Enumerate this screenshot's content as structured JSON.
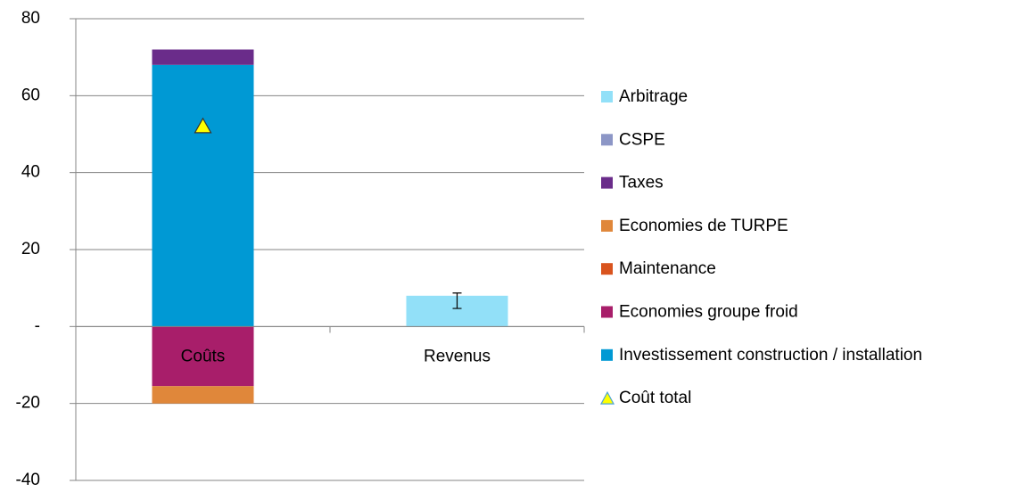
{
  "chart_data": {
    "type": "bar",
    "stacked": true,
    "categories": [
      "Coûts",
      "Revenus"
    ],
    "series": [
      {
        "name": "Arbitrage",
        "color": "#92e0f8",
        "values": [
          0,
          8
        ]
      },
      {
        "name": "CSPE",
        "color": "#8c96c6",
        "values": [
          0,
          0
        ]
      },
      {
        "name": "Taxes",
        "color": "#6a2c8a",
        "values": [
          4,
          0
        ]
      },
      {
        "name": "Economies de TURPE",
        "color": "#e0873a",
        "values": [
          -4.5,
          0
        ]
      },
      {
        "name": "Maintenance",
        "color": "#d9541e",
        "values": [
          0,
          0
        ]
      },
      {
        "name": "Economies groupe froid",
        "color": "#a81e6a",
        "values": [
          -15.5,
          0
        ]
      },
      {
        "name": "Investissement construction / installation",
        "color": "#0099d4",
        "values": [
          68,
          0
        ]
      },
      {
        "name": "Coût total",
        "color": "#ffff00",
        "type": "marker",
        "values": [
          52,
          6.7
        ],
        "marker_shown": [
          true,
          false
        ],
        "errors": [
          null,
          2
        ]
      }
    ],
    "ylim": [
      -40,
      80
    ],
    "yticks": [
      -40,
      -20,
      {
        "value": 0,
        "label": "-"
      },
      20,
      40,
      60,
      80
    ],
    "grid": true,
    "legend": "right"
  }
}
